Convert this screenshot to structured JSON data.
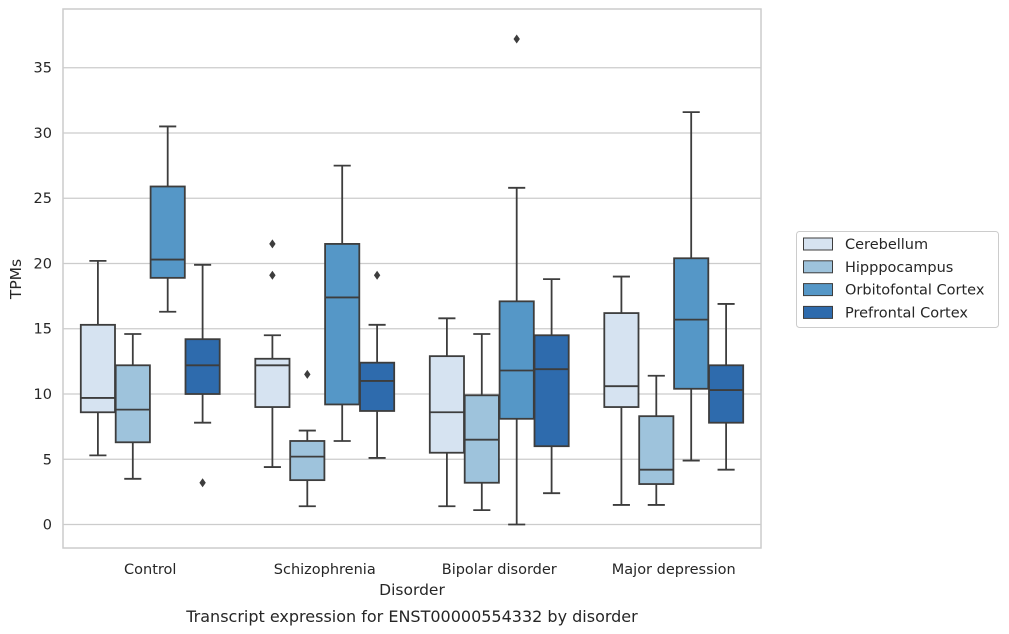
{
  "caption": "Transcript expression for ENST00000554332 by disorder",
  "chart_data": {
    "type": "box",
    "title": "",
    "xlabel": "Disorder",
    "ylabel": "TPMs",
    "ylim": [
      -1.8,
      39.5
    ],
    "yticks": [
      0,
      5,
      10,
      15,
      20,
      25,
      30,
      35
    ],
    "grid": "horizontal",
    "legend_position": "right",
    "categories": [
      "Control",
      "Schizophrenia",
      "Bipolar disorder",
      "Major depression"
    ],
    "series": [
      {
        "name": "Cerebellum",
        "color": "#d6e3f1",
        "boxes": [
          {
            "whisker_low": 5.3,
            "q1": 8.6,
            "median": 9.7,
            "q3": 15.3,
            "whisker_high": 20.2,
            "outliers": []
          },
          {
            "whisker_low": 4.4,
            "q1": 9.0,
            "median": 12.2,
            "q3": 12.7,
            "whisker_high": 14.5,
            "outliers": [
              19.1,
              21.5
            ]
          },
          {
            "whisker_low": 1.4,
            "q1": 5.5,
            "median": 8.6,
            "q3": 12.9,
            "whisker_high": 15.8,
            "outliers": []
          },
          {
            "whisker_low": 1.5,
            "q1": 9.0,
            "median": 10.6,
            "q3": 16.2,
            "whisker_high": 19.0,
            "outliers": []
          }
        ]
      },
      {
        "name": "Hipppocampus",
        "color": "#9ec3dc",
        "boxes": [
          {
            "whisker_low": 3.5,
            "q1": 6.3,
            "median": 8.8,
            "q3": 12.2,
            "whisker_high": 14.6,
            "outliers": []
          },
          {
            "whisker_low": 1.4,
            "q1": 3.4,
            "median": 5.2,
            "q3": 6.4,
            "whisker_high": 7.2,
            "outliers": [
              11.5
            ]
          },
          {
            "whisker_low": 1.1,
            "q1": 3.2,
            "median": 6.5,
            "q3": 9.9,
            "whisker_high": 14.6,
            "outliers": []
          },
          {
            "whisker_low": 1.5,
            "q1": 3.1,
            "median": 4.2,
            "q3": 8.3,
            "whisker_high": 11.4,
            "outliers": []
          }
        ]
      },
      {
        "name": "Orbitofontal Cortex",
        "color": "#5597c7",
        "boxes": [
          {
            "whisker_low": 16.3,
            "q1": 18.9,
            "median": 20.3,
            "q3": 25.9,
            "whisker_high": 30.5,
            "outliers": []
          },
          {
            "whisker_low": 6.4,
            "q1": 9.2,
            "median": 17.4,
            "q3": 21.5,
            "whisker_high": 27.5,
            "outliers": []
          },
          {
            "whisker_low": 0.0,
            "q1": 8.1,
            "median": 11.8,
            "q3": 17.1,
            "whisker_high": 25.8,
            "outliers": [
              37.2
            ]
          },
          {
            "whisker_low": 4.9,
            "q1": 10.4,
            "median": 15.7,
            "q3": 20.4,
            "whisker_high": 31.6,
            "outliers": []
          }
        ]
      },
      {
        "name": "Prefrontal Cortex",
        "color": "#2e6bad",
        "boxes": [
          {
            "whisker_low": 7.8,
            "q1": 10.0,
            "median": 12.2,
            "q3": 14.2,
            "whisker_high": 19.9,
            "outliers": [
              3.2
            ]
          },
          {
            "whisker_low": 5.1,
            "q1": 8.7,
            "median": 11.0,
            "q3": 12.4,
            "whisker_high": 15.3,
            "outliers": [
              19.1
            ]
          },
          {
            "whisker_low": 2.4,
            "q1": 6.0,
            "median": 11.9,
            "q3": 14.5,
            "whisker_high": 18.8,
            "outliers": []
          },
          {
            "whisker_low": 4.2,
            "q1": 7.8,
            "median": 10.3,
            "q3": 12.2,
            "whisker_high": 16.9,
            "outliers": []
          }
        ]
      }
    ]
  }
}
